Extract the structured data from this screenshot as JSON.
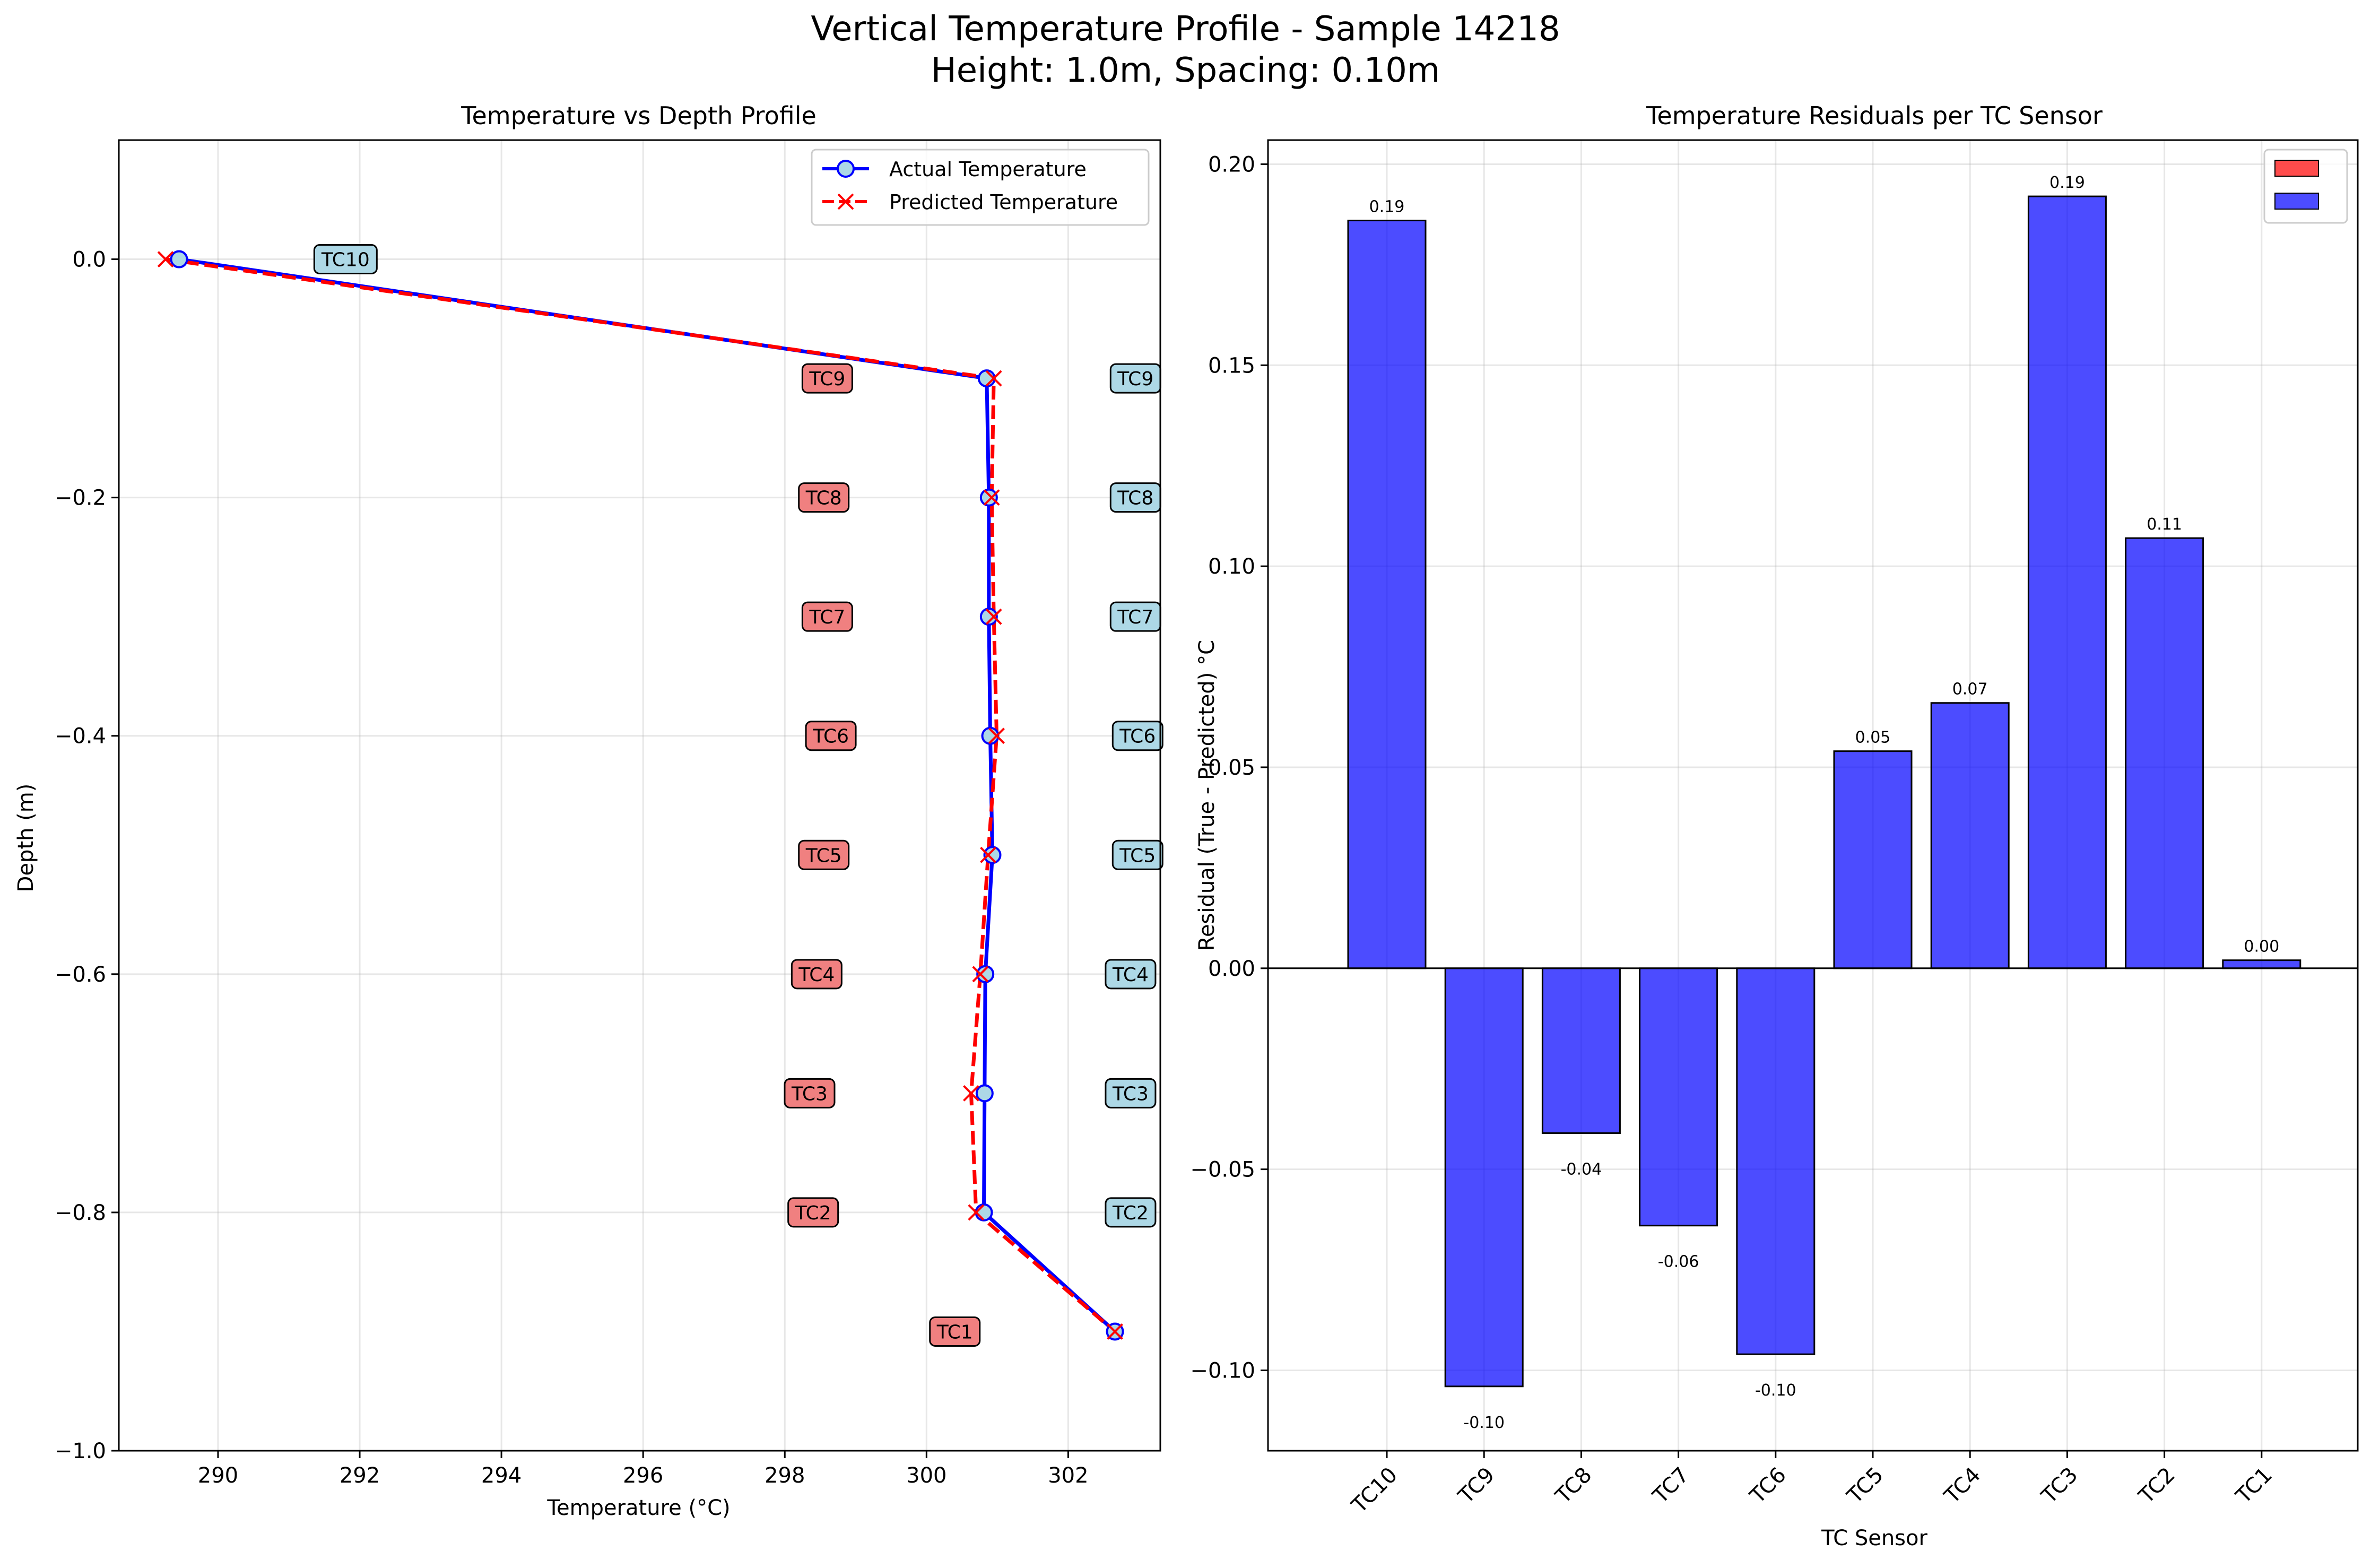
{
  "figure": {
    "title_line1": "Vertical Temperature Profile - Sample 14218",
    "title_line2": "Height: 1.0m, Spacing: 0.10m"
  },
  "chart_data": [
    {
      "type": "line",
      "title": "Temperature vs Depth Profile",
      "xlabel": "Temperature (°C)",
      "ylabel": "Depth (m)",
      "xlim": [
        288.6,
        303.3
      ],
      "ylim": [
        -1.0,
        0.1
      ],
      "xticks": [
        290,
        292,
        294,
        296,
        298,
        300,
        302
      ],
      "yticks": [
        0.0,
        -0.2,
        -0.4,
        -0.6,
        -0.8,
        -1.0
      ],
      "ytick_labels": [
        "0.0",
        "−0.2",
        "−0.4",
        "−0.6",
        "−0.8",
        "−1.0"
      ],
      "grid": true,
      "legend_position": "upper right",
      "series": [
        {
          "name": "Actual Temperature",
          "color": "#0000ff",
          "marker": "circle",
          "linestyle": "solid",
          "points": [
            {
              "temp": 289.45,
              "depth": 0.0
            },
            {
              "temp": 300.85,
              "depth": -0.1
            },
            {
              "temp": 300.88,
              "depth": -0.2
            },
            {
              "temp": 300.88,
              "depth": -0.3
            },
            {
              "temp": 300.9,
              "depth": -0.4
            },
            {
              "temp": 300.93,
              "depth": -0.5
            },
            {
              "temp": 300.83,
              "depth": -0.6
            },
            {
              "temp": 300.82,
              "depth": -0.7
            },
            {
              "temp": 300.81,
              "depth": -0.8
            },
            {
              "temp": 302.66,
              "depth": -0.9
            }
          ]
        },
        {
          "name": "Predicted Temperature",
          "color": "#ff0000",
          "marker": "x",
          "linestyle": "dashed",
          "points": [
            {
              "temp": 289.26,
              "depth": 0.0
            },
            {
              "temp": 300.95,
              "depth": -0.1
            },
            {
              "temp": 300.92,
              "depth": -0.2
            },
            {
              "temp": 300.95,
              "depth": -0.3
            },
            {
              "temp": 300.99,
              "depth": -0.4
            },
            {
              "temp": 300.87,
              "depth": -0.5
            },
            {
              "temp": 300.76,
              "depth": -0.6
            },
            {
              "temp": 300.63,
              "depth": -0.7
            },
            {
              "temp": 300.7,
              "depth": -0.8
            },
            {
              "temp": 302.66,
              "depth": -0.9
            }
          ]
        }
      ],
      "annotations": [
        {
          "text": "TC10",
          "temp": 291.8,
          "depth": 0.0,
          "color": "#add8e6"
        },
        {
          "text": "TC9",
          "temp": 298.6,
          "depth": -0.1,
          "color": "#f08080"
        },
        {
          "text": "TC9",
          "temp": 302.95,
          "depth": -0.1,
          "color": "#add8e6"
        },
        {
          "text": "TC8",
          "temp": 298.55,
          "depth": -0.2,
          "color": "#f08080"
        },
        {
          "text": "TC8",
          "temp": 302.95,
          "depth": -0.2,
          "color": "#add8e6"
        },
        {
          "text": "TC7",
          "temp": 298.6,
          "depth": -0.3,
          "color": "#f08080"
        },
        {
          "text": "TC7",
          "temp": 302.95,
          "depth": -0.3,
          "color": "#add8e6"
        },
        {
          "text": "TC6",
          "temp": 298.65,
          "depth": -0.4,
          "color": "#f08080"
        },
        {
          "text": "TC6",
          "temp": 302.98,
          "depth": -0.4,
          "color": "#add8e6"
        },
        {
          "text": "TC5",
          "temp": 298.55,
          "depth": -0.5,
          "color": "#f08080"
        },
        {
          "text": "TC5",
          "temp": 302.98,
          "depth": -0.5,
          "color": "#add8e6"
        },
        {
          "text": "TC4",
          "temp": 298.45,
          "depth": -0.6,
          "color": "#f08080"
        },
        {
          "text": "TC4",
          "temp": 302.88,
          "depth": -0.6,
          "color": "#add8e6"
        },
        {
          "text": "TC3",
          "temp": 298.35,
          "depth": -0.7,
          "color": "#f08080"
        },
        {
          "text": "TC3",
          "temp": 302.88,
          "depth": -0.7,
          "color": "#add8e6"
        },
        {
          "text": "TC2",
          "temp": 298.4,
          "depth": -0.8,
          "color": "#f08080"
        },
        {
          "text": "TC2",
          "temp": 302.88,
          "depth": -0.8,
          "color": "#add8e6"
        },
        {
          "text": "TC1",
          "temp": 300.4,
          "depth": -0.9,
          "color": "#f08080"
        }
      ]
    },
    {
      "type": "bar",
      "title": "Temperature Residuals per TC Sensor",
      "xlabel": "TC Sensor",
      "ylabel": "Residual (True - Predicted) °C",
      "categories": [
        "TC10",
        "TC9",
        "TC8",
        "TC7",
        "TC6",
        "TC5",
        "TC4",
        "TC3",
        "TC2",
        "TC1"
      ],
      "values": [
        0.186,
        -0.104,
        -0.041,
        -0.064,
        -0.096,
        0.054,
        0.066,
        0.192,
        0.107,
        0.002
      ],
      "value_labels": [
        "0.19",
        "-0.10",
        "-0.04",
        "-0.06",
        "-0.10",
        "0.05",
        "0.07",
        "0.19",
        "0.11",
        "0.00"
      ],
      "bar_color": "#0000ff",
      "ylim": [
        -0.12,
        0.206
      ],
      "yticks": [
        0.2,
        0.15,
        0.1,
        0.05,
        0.0,
        -0.05,
        -0.1
      ],
      "ytick_labels": [
        "0.20",
        "0.15",
        "0.10",
        "0.05",
        "0.00",
        "−0.05",
        "−0.10"
      ],
      "grid": true,
      "legend_position": "upper right",
      "legend_colors": [
        "#ff0000",
        "#0000ff"
      ]
    }
  ]
}
